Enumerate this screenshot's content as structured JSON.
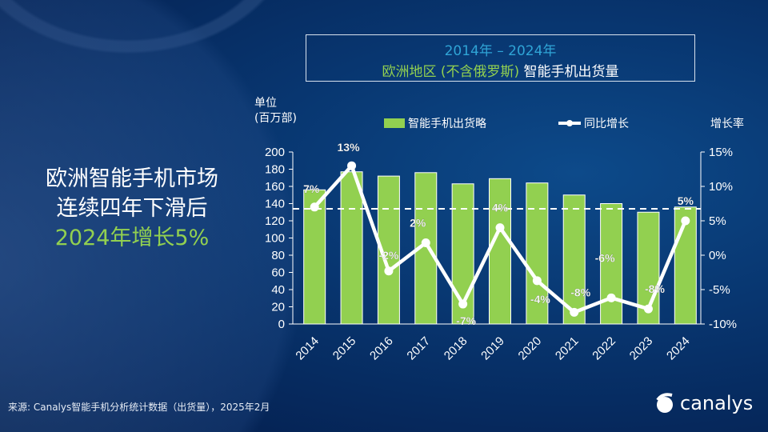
{
  "headline": {
    "line1": "欧洲智能手机市场",
    "line2": "连续四年下滑后",
    "line3": "2024年增长5%"
  },
  "title": {
    "line1": "2014年 – 2024年",
    "line2_green": "欧洲地区 (不含俄罗斯)",
    "line2_white": " 智能手机出货量"
  },
  "footer": {
    "source": "来源: Canalys智能手机分析统计数据（出货量），2025年2月",
    "logo": "canalys"
  },
  "colors": {
    "bar": "#92d050",
    "line": "#ffffff",
    "title_accent": "#2fa4d6"
  },
  "chart_data": {
    "type": "bar+line",
    "ylabel_left": "单位\n(百万部)",
    "ylabel_left_line1": "单位",
    "ylabel_left_line2": "(百万部)",
    "ylabel_right": "增长率",
    "ylim_left": [
      0,
      200
    ],
    "left_ticks": [
      "0",
      "20",
      "40",
      "60",
      "80",
      "100",
      "120",
      "140",
      "160",
      "180",
      "200"
    ],
    "ylim_right": [
      -10,
      15
    ],
    "right_ticks": [
      "-10%",
      "-5%",
      "0%",
      "5%",
      "10%",
      "15%"
    ],
    "legend_position": "top",
    "categories": [
      "2014",
      "2015",
      "2016",
      "2017",
      "2018",
      "2019",
      "2020",
      "2021",
      "2022",
      "2023",
      "2024"
    ],
    "series": [
      {
        "name": "智能手机出货略",
        "type": "bar",
        "axis": "left",
        "values": [
          156,
          177,
          172,
          176,
          163,
          169,
          164,
          150,
          140,
          130,
          136
        ]
      },
      {
        "name": "同比增长",
        "type": "line",
        "axis": "right",
        "values": [
          7,
          13,
          -2.3,
          1.8,
          -7.1,
          4,
          -3.7,
          -8.3,
          -6.2,
          -7.8,
          5
        ],
        "labels": [
          "7%",
          "13%",
          "-2%",
          "2%",
          "-7%",
          "4%",
          "-4%",
          "-8%",
          "-6%",
          "-8%",
          "5%"
        ]
      }
    ],
    "reference_line": {
      "style": "dashed",
      "axis": "left",
      "value": 134
    }
  }
}
